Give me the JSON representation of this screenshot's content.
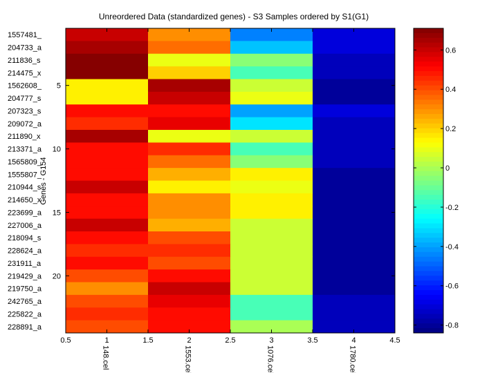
{
  "chart_data": {
    "type": "heatmap",
    "title": "Unreordered Data (standardized genes) - S3 Samples ordered by S1(G1)",
    "ylabel": "Genes - G154",
    "xlabel": "",
    "xlim": [
      0.5,
      4.5
    ],
    "x_ticks": [
      "0.5",
      "1",
      "1.5",
      "2",
      "2.5",
      "3",
      "3.5",
      "4",
      "4.5"
    ],
    "x_categories": [
      "148.cel",
      "1553.cel",
      "1076.cel",
      "1780.cel"
    ],
    "y_numeric_ticks": [
      "5",
      "10",
      "15",
      "20"
    ],
    "row_labels": [
      "1557481_",
      "204733_a",
      "211836_s",
      "214475_x",
      "1562608_",
      "204777_s",
      "207323_s",
      "209072_a",
      "211890_x",
      "213371_a",
      "1565809_",
      "1555807_",
      "210944_s",
      "214650_x",
      "223699_a",
      "227006_a",
      "218094_s",
      "228624_a",
      "231911_a",
      "219429_a",
      "219750_a",
      "242765_a",
      "225822_a",
      "228891_a"
    ],
    "values": [
      [
        0.6,
        0.3,
        -0.45,
        -0.7
      ],
      [
        0.65,
        0.35,
        -0.35,
        -0.7
      ],
      [
        0.7,
        0.1,
        -0.05,
        -0.75
      ],
      [
        0.7,
        0.2,
        -0.15,
        -0.75
      ],
      [
        0.15,
        0.65,
        0.05,
        -0.8
      ],
      [
        0.15,
        0.6,
        0.1,
        -0.8
      ],
      [
        0.5,
        0.5,
        -0.4,
        -0.7
      ],
      [
        0.45,
        0.55,
        -0.3,
        -0.75
      ],
      [
        0.65,
        0.1,
        0.05,
        -0.75
      ],
      [
        0.5,
        0.45,
        -0.15,
        -0.75
      ],
      [
        0.5,
        0.35,
        -0.05,
        -0.75
      ],
      [
        0.5,
        0.25,
        0.15,
        -0.8
      ],
      [
        0.6,
        0.15,
        0.1,
        -0.8
      ],
      [
        0.5,
        0.3,
        0.15,
        -0.8
      ],
      [
        0.5,
        0.3,
        0.15,
        -0.8
      ],
      [
        0.6,
        0.25,
        0.05,
        -0.8
      ],
      [
        0.5,
        0.4,
        0.05,
        -0.8
      ],
      [
        0.45,
        0.45,
        0.05,
        -0.8
      ],
      [
        0.5,
        0.4,
        0.05,
        -0.8
      ],
      [
        0.4,
        0.5,
        0.05,
        -0.8
      ],
      [
        0.3,
        0.6,
        0.05,
        -0.8
      ],
      [
        0.4,
        0.55,
        -0.15,
        -0.75
      ],
      [
        0.45,
        0.5,
        -0.15,
        -0.75
      ],
      [
        0.4,
        0.5,
        0.0,
        -0.75
      ]
    ],
    "colorbar": {
      "colormap": "jet",
      "range": [
        -0.84,
        0.71
      ],
      "ticks": [
        0.6,
        0.4,
        0.2,
        0,
        -0.2,
        -0.4,
        -0.6,
        -0.8
      ],
      "tick_labels": [
        "0.6",
        "0.4",
        "0.2",
        "0",
        "-0.2",
        "-0.4",
        "-0.6",
        "-0.8"
      ]
    }
  }
}
